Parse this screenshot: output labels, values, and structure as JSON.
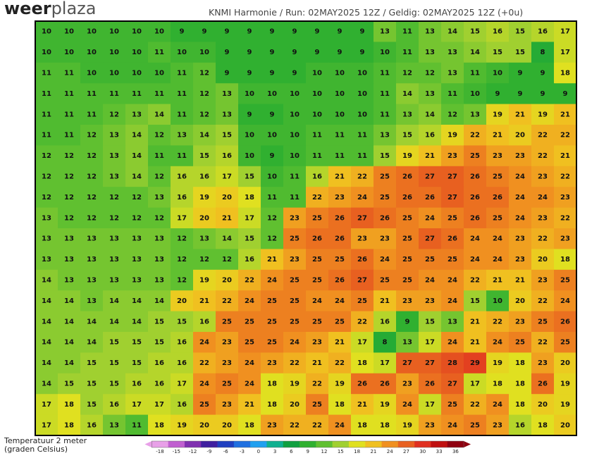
{
  "header": {
    "logo_bold": "weer",
    "logo_light": "plaza",
    "subtitle": "KNMI Harmonie / Run: 02MAY2025 12Z / Geldig: 02MAY2025 12Z (+0u)"
  },
  "map": {
    "grid": [
      [
        10,
        10,
        10,
        10,
        10,
        10,
        9,
        9,
        9,
        9,
        9,
        9,
        9,
        9,
        9,
        13,
        11,
        13,
        14,
        15,
        16,
        15,
        16,
        17
      ],
      [
        10,
        10,
        10,
        10,
        10,
        11,
        10,
        10,
        9,
        9,
        9,
        9,
        9,
        9,
        9,
        10,
        11,
        13,
        13,
        14,
        15,
        15,
        8,
        17
      ],
      [
        11,
        11,
        10,
        10,
        10,
        10,
        11,
        12,
        9,
        9,
        9,
        9,
        10,
        10,
        10,
        11,
        12,
        12,
        13,
        11,
        10,
        9,
        9,
        18
      ],
      [
        11,
        11,
        11,
        11,
        11,
        11,
        11,
        12,
        13,
        10,
        10,
        10,
        10,
        10,
        10,
        11,
        14,
        13,
        11,
        10,
        9,
        9,
        9,
        9
      ],
      [
        11,
        11,
        11,
        12,
        13,
        14,
        11,
        12,
        13,
        9,
        9,
        10,
        10,
        10,
        10,
        11,
        13,
        14,
        12,
        13,
        19,
        21,
        19,
        21
      ],
      [
        11,
        11,
        12,
        13,
        14,
        12,
        13,
        14,
        15,
        10,
        10,
        10,
        11,
        11,
        11,
        13,
        15,
        16,
        19,
        22,
        21,
        20,
        22,
        22
      ],
      [
        12,
        12,
        12,
        13,
        14,
        11,
        11,
        15,
        16,
        10,
        9,
        10,
        11,
        11,
        11,
        15,
        19,
        21,
        23,
        25,
        23,
        23,
        22,
        21
      ],
      [
        12,
        12,
        12,
        13,
        14,
        12,
        16,
        16,
        17,
        15,
        10,
        11,
        16,
        21,
        22,
        25,
        26,
        27,
        27,
        26,
        25,
        24,
        23,
        22
      ],
      [
        12,
        12,
        12,
        12,
        12,
        13,
        16,
        19,
        20,
        18,
        11,
        11,
        22,
        23,
        24,
        25,
        26,
        26,
        27,
        26,
        26,
        24,
        24,
        23
      ],
      [
        13,
        12,
        12,
        12,
        12,
        12,
        17,
        20,
        21,
        17,
        12,
        23,
        25,
        26,
        27,
        26,
        25,
        24,
        25,
        26,
        25,
        24,
        23,
        22
      ],
      [
        13,
        13,
        13,
        13,
        13,
        13,
        12,
        13,
        14,
        15,
        12,
        25,
        26,
        26,
        23,
        23,
        25,
        27,
        26,
        24,
        24,
        23,
        22,
        23
      ],
      [
        13,
        13,
        13,
        13,
        13,
        13,
        12,
        12,
        12,
        16,
        21,
        23,
        25,
        25,
        26,
        24,
        25,
        25,
        25,
        24,
        24,
        23,
        20,
        18
      ],
      [
        14,
        13,
        13,
        13,
        13,
        13,
        12,
        19,
        20,
        22,
        24,
        25,
        25,
        26,
        27,
        25,
        25,
        24,
        24,
        22,
        21,
        21,
        23,
        25
      ],
      [
        14,
        14,
        13,
        14,
        14,
        14,
        20,
        21,
        22,
        24,
        25,
        25,
        24,
        24,
        25,
        21,
        23,
        23,
        24,
        15,
        10,
        20,
        22,
        24
      ],
      [
        14,
        14,
        14,
        14,
        14,
        15,
        15,
        16,
        25,
        25,
        25,
        25,
        25,
        25,
        22,
        16,
        9,
        15,
        13,
        21,
        22,
        23,
        25,
        26
      ],
      [
        14,
        14,
        14,
        15,
        15,
        15,
        16,
        24,
        23,
        25,
        25,
        24,
        23,
        21,
        17,
        8,
        13,
        17,
        24,
        21,
        24,
        25,
        22,
        25
      ],
      [
        14,
        14,
        15,
        15,
        15,
        16,
        16,
        22,
        23,
        24,
        23,
        22,
        21,
        22,
        18,
        17,
        27,
        27,
        28,
        29,
        19,
        18,
        23,
        20
      ],
      [
        14,
        15,
        15,
        15,
        16,
        16,
        17,
        24,
        25,
        24,
        18,
        19,
        22,
        19,
        26,
        26,
        23,
        26,
        27,
        17,
        18,
        18,
        26,
        19
      ],
      [
        17,
        18,
        15,
        16,
        17,
        17,
        16,
        25,
        23,
        21,
        18,
        20,
        25,
        18,
        21,
        19,
        24,
        17,
        25,
        22,
        24,
        18,
        20,
        19
      ],
      [
        17,
        18,
        16,
        13,
        11,
        18,
        19,
        20,
        20,
        18,
        23,
        22,
        22,
        24,
        18,
        18,
        19,
        23,
        24,
        25,
        23,
        16,
        18,
        20
      ]
    ]
  },
  "legend": {
    "title": "Temperatuur 2 meter",
    "unit": "(graden Celsius)",
    "ticks": [
      -18,
      -15,
      -12,
      -9,
      -6,
      -3,
      0,
      3,
      6,
      9,
      12,
      15,
      18,
      21,
      24,
      27,
      30,
      33,
      36
    ],
    "colors": [
      "#e8a0e8",
      "#c060d0",
      "#8030b0",
      "#4020a0",
      "#2040c0",
      "#2070e0",
      "#20a0f0",
      "#10b090",
      "#10a040",
      "#30b030",
      "#60c030",
      "#a0d030",
      "#e0e020",
      "#f0c020",
      "#f09020",
      "#e86020",
      "#e03020",
      "#c01010",
      "#900010"
    ]
  }
}
